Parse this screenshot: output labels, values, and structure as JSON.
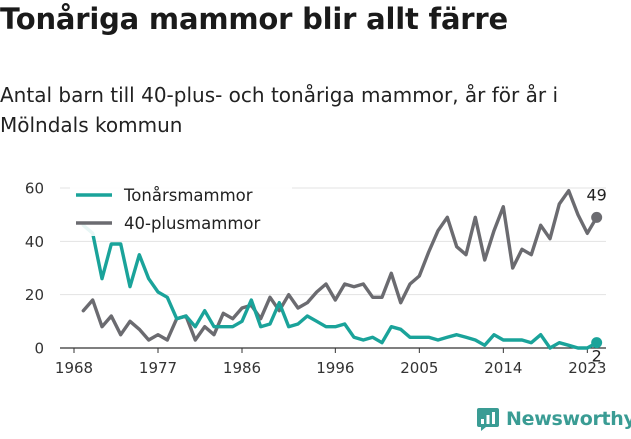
{
  "title": "Tonåriga mammor blir allt färre",
  "subtitle": "Antal barn till 40-plus- och tonåriga mammor, år för år i Mölndals kommun",
  "brand": {
    "name": "Newsworthy",
    "color": "#3a9c94",
    "icon": "newsworthy-logo-icon"
  },
  "chart_data": {
    "type": "line",
    "title": "Tonåriga mammor blir allt färre",
    "subtitle": "Antal barn till 40-plus- och tonåriga mammor, år för år i Mölndals kommun",
    "xlabel": "",
    "ylabel": "",
    "x": [
      1968,
      1969,
      1970,
      1971,
      1972,
      1973,
      1974,
      1975,
      1976,
      1977,
      1978,
      1979,
      1980,
      1981,
      1982,
      1983,
      1984,
      1985,
      1986,
      1987,
      1988,
      1989,
      1990,
      1991,
      1992,
      1993,
      1994,
      1995,
      1996,
      1997,
      1998,
      1999,
      2000,
      2001,
      2002,
      2003,
      2004,
      2005,
      2006,
      2007,
      2008,
      2009,
      2010,
      2011,
      2012,
      2013,
      2014,
      2015,
      2016,
      2017,
      2018,
      2019,
      2020,
      2021,
      2022,
      2023,
      2024
    ],
    "xlim": [
      1966.5,
      2025
    ],
    "ylim": [
      0,
      60
    ],
    "xticks": [
      "1968",
      "1977",
      "1986",
      "1996",
      "2005",
      "2014",
      "2023"
    ],
    "yticks": [
      "0",
      "20",
      "40",
      "60"
    ],
    "grid": true,
    "legend": "top-left",
    "series": [
      {
        "name": "Tonårsmammor",
        "color": "#1aa39a",
        "values": [
          null,
          46,
          43,
          26,
          39,
          39,
          23,
          35,
          26,
          21,
          19,
          11,
          12,
          8,
          14,
          8,
          8,
          8,
          10,
          18,
          8,
          9,
          17,
          8,
          9,
          12,
          10,
          8,
          8,
          9,
          4,
          3,
          4,
          2,
          8,
          7,
          4,
          4,
          4,
          3,
          4,
          5,
          4,
          3,
          1,
          5,
          3,
          3,
          3,
          2,
          5,
          0,
          2,
          1,
          0,
          0,
          2
        ],
        "end_label": "2"
      },
      {
        "name": "40-plusmammor",
        "color": "#6b6b70",
        "values": [
          null,
          14,
          18,
          8,
          12,
          5,
          10,
          7,
          3,
          5,
          3,
          11,
          12,
          3,
          8,
          5,
          13,
          11,
          15,
          16,
          11,
          19,
          14,
          20,
          15,
          17,
          21,
          24,
          18,
          24,
          23,
          24,
          19,
          19,
          28,
          17,
          24,
          27,
          36,
          44,
          49,
          38,
          35,
          49,
          33,
          44,
          53,
          30,
          37,
          35,
          46,
          41,
          54,
          59,
          50,
          43,
          49
        ],
        "end_label": "49"
      }
    ]
  }
}
